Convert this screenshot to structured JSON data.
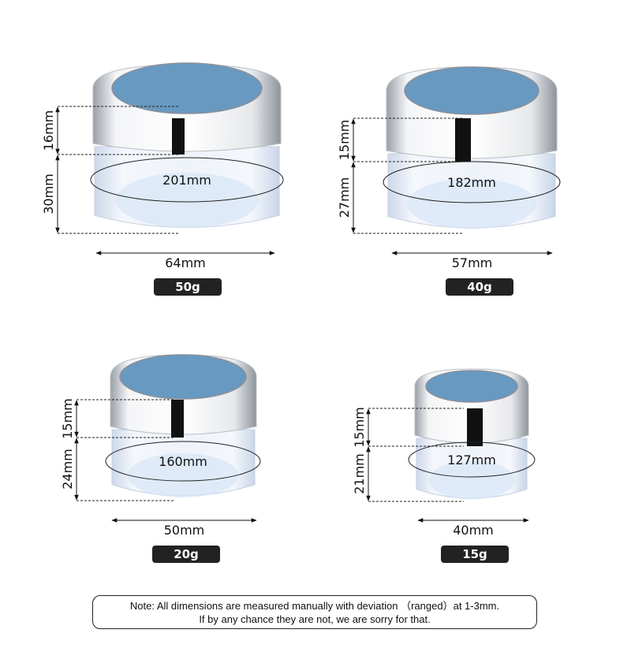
{
  "jars": [
    {
      "capacity": "50g",
      "lid_height": "16mm",
      "body_height": "30mm",
      "circumference": "201mm",
      "diameter": "64mm"
    },
    {
      "capacity": "40g",
      "lid_height": "15mm",
      "body_height": "27mm",
      "circumference": "182mm",
      "diameter": "57mm"
    },
    {
      "capacity": "20g",
      "lid_height": "15mm",
      "body_height": "24mm",
      "circumference": "160mm",
      "diameter": "50mm"
    },
    {
      "capacity": "15g",
      "lid_height": "15mm",
      "body_height": "21mm",
      "circumference": "127mm",
      "diameter": "40mm"
    }
  ],
  "colors": {
    "lid_top": "#6899c1",
    "lid_silver": "#d9dde2",
    "badge": "#222222",
    "body": "#e3ecf7"
  },
  "note": {
    "line1": "Note: All dimensions are measured manually with deviation （ranged）at 1-3mm.",
    "line2": "If by any chance they are not, we are sorry for that."
  }
}
